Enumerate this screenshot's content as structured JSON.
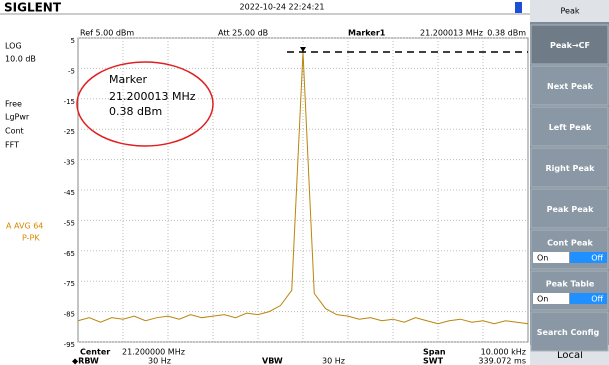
{
  "header": {
    "logo": "SIGLENT",
    "datetime": "2022-10-24  22:24:21"
  },
  "status": {
    "ref": "Ref  5.00 dBm",
    "att": "Att  25.00 dB",
    "marker": "Marker1",
    "marker_freq": "21.200013 MHz",
    "marker_level": "0.38 dBm"
  },
  "left": [
    "LOG",
    "10.0 dB",
    "Free",
    "LgPwr",
    "Cont",
    "FFT"
  ],
  "trace_info": [
    "A AVG 64",
    "P-PK"
  ],
  "annotation": [
    "Marker",
    "21.200013 MHz",
    "0.38 dBm"
  ],
  "footer": {
    "center_label": "Center",
    "center": "21.200000 MHz",
    "rbw_label": "◆RBW",
    "rbw": "30 Hz",
    "vbw_label": "VBW",
    "vbw": "30 Hz",
    "span_label": "Span",
    "span": "10.000 kHz",
    "swt_label": "SWT",
    "swt": "339.072 ms"
  },
  "menu": {
    "title": "Peak",
    "items": [
      "Peak→CF",
      "Next Peak",
      "Left Peak",
      "Right Peak",
      "Peak Peak"
    ],
    "cont_peak": {
      "label": "Cont Peak",
      "on": "On",
      "off": "Off"
    },
    "peak_table": {
      "label": "Peak Table",
      "on": "On",
      "off": "Off"
    },
    "search_config": "Search Config",
    "local": "Local"
  },
  "chart_data": {
    "type": "line",
    "color": "#b8860b",
    "x": [
      21.195,
      21.19525,
      21.1955,
      21.19575,
      21.196,
      21.19625,
      21.1965,
      21.19675,
      21.197,
      21.19725,
      21.1975,
      21.19775,
      21.198,
      21.19825,
      21.1985,
      21.19875,
      21.199,
      21.19925,
      21.1995,
      21.19975,
      21.2,
      21.20025,
      21.2005,
      21.20075,
      21.201,
      21.20125,
      21.2015,
      21.20175,
      21.202,
      21.20225,
      21.2025,
      21.20275,
      21.203,
      21.20325,
      21.2035,
      21.20375,
      21.204,
      21.20425,
      21.2045,
      21.20475,
      21.205
    ],
    "values": [
      -88,
      -87,
      -88.5,
      -87,
      -87.5,
      -86.5,
      -88,
      -87,
      -86.5,
      -87.5,
      -86,
      -87,
      -86.5,
      -86,
      -87,
      -85.5,
      -86,
      -85,
      -83,
      -78,
      0.38,
      -79,
      -84,
      -86,
      -86.5,
      -87.5,
      -87,
      -88,
      -87.5,
      -88.5,
      -87,
      -88,
      -89,
      -88,
      -87.5,
      -88.5,
      -88,
      -89,
      -88,
      -88.5,
      -89
    ],
    "xlim": [
      21.195,
      21.205
    ],
    "ylim": [
      -95,
      5
    ],
    "yticks": [
      5,
      -5,
      -15,
      -25,
      -35,
      -45,
      -55,
      -65,
      -75,
      -85,
      -95
    ],
    "grid": true
  }
}
